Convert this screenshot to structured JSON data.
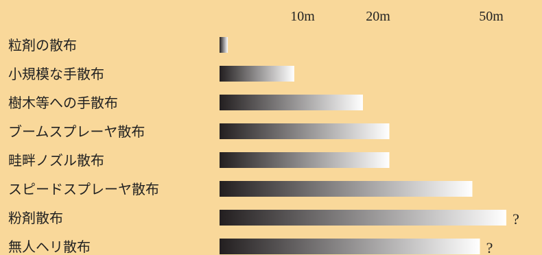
{
  "chart_data": {
    "type": "bar",
    "orientation": "horizontal",
    "title": "",
    "xlabel": "",
    "ylabel": "",
    "tick_values": [
      10,
      20,
      50
    ],
    "tick_labels": [
      "10m",
      "20m",
      "50m"
    ],
    "grid": false,
    "legend": "none",
    "colors": {
      "background": "#f9d89a",
      "bar_start": "#231f20",
      "bar_end": "#ffffff",
      "text": "#222222"
    },
    "categories": [
      "粒剤の散布",
      "小規模な手散布",
      "樹木等への手散布",
      "ブームスプレーヤ散布",
      "畦畔ノズル散布",
      "スピードスプレーヤ散布",
      "粉剤散布",
      "無人ヘリ散布"
    ],
    "values": [
      1,
      9,
      18,
      23,
      23,
      45,
      54,
      47
    ],
    "annotations": [
      "",
      "",
      "",
      "",
      "",
      "",
      "?",
      "?"
    ]
  }
}
